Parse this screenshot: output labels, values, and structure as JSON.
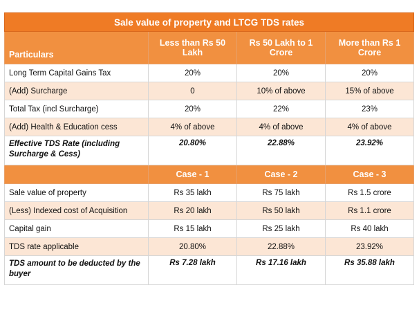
{
  "title": "Sale value of property and LTCG TDS rates",
  "headers": {
    "particulars": "Particulars",
    "col1": "Less than Rs 50 Lakh",
    "col2": "Rs 50 Lakh to 1 Crore",
    "col3": "More than Rs 1 Crore"
  },
  "rates": [
    {
      "label": "Long Term Capital Gains Tax",
      "v1": "20%",
      "v2": "20%",
      "v3": "20%"
    },
    {
      "label": "(Add) Surcharge",
      "v1": "0",
      "v2": "10% of above",
      "v3": "15% of above"
    },
    {
      "label": "Total Tax (incl Surcharge)",
      "v1": "20%",
      "v2": "22%",
      "v3": "23%"
    },
    {
      "label": "(Add) Health & Education cess",
      "v1": "4% of above",
      "v2": "4% of above",
      "v3": "4% of above"
    },
    {
      "label": "Effective TDS Rate (including Surcharge & Cess)",
      "v1": "20.80%",
      "v2": "22.88%",
      "v3": "23.92%"
    }
  ],
  "cases": {
    "c1": "Case - 1",
    "c2": "Case - 2",
    "c3": "Case - 3"
  },
  "case_rows": [
    {
      "label": "Sale value of property",
      "v1": "Rs 35 lakh",
      "v2": "Rs 75 lakh",
      "v3": "Rs 1.5 crore"
    },
    {
      "label": "(Less) Indexed cost of Acquisition",
      "v1": "Rs 20 lakh",
      "v2": "Rs 50 lakh",
      "v3": "Rs 1.1 crore"
    },
    {
      "label": "Capital gain",
      "v1": "Rs 15 lakh",
      "v2": "Rs 25 lakh",
      "v3": "Rs 40 lakh"
    },
    {
      "label": "TDS rate applicable",
      "v1": "20.80%",
      "v2": "22.88%",
      "v3": "23.92%"
    },
    {
      "label": "TDS amount to be deducted by the buyer",
      "v1": "Rs 7.28 lakh",
      "v2": "Rs 17.16 lakh",
      "v3": "Rs 35.88 lakh"
    }
  ]
}
